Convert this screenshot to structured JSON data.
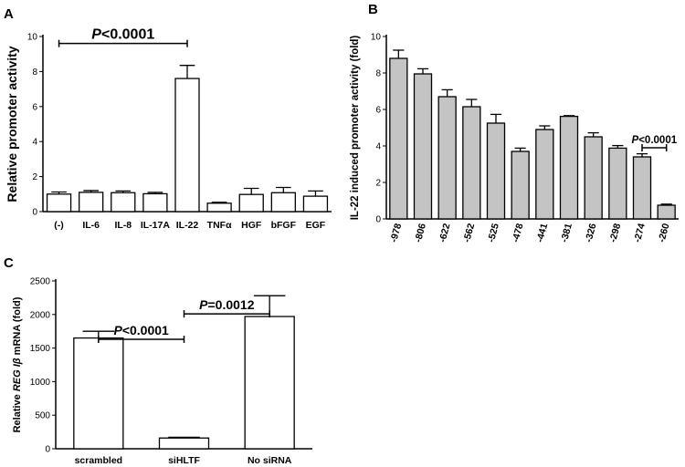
{
  "chart_data": [
    {
      "panel": "A",
      "type": "bar",
      "categories": [
        "(-)",
        "IL-6",
        "IL-8",
        "IL-17A",
        "IL-22",
        "TNFα",
        "HGF",
        "bFGF",
        "EGF"
      ],
      "values": [
        1.0,
        1.1,
        1.08,
        1.02,
        7.6,
        0.48,
        0.98,
        1.08,
        0.88
      ],
      "errors": [
        0.12,
        0.1,
        0.1,
        0.08,
        0.75,
        0.05,
        0.35,
        0.3,
        0.3
      ],
      "ylabel": "Relative promoter activity",
      "ylim": [
        0,
        10
      ],
      "yticks": [
        0,
        2,
        4,
        6,
        8,
        10
      ],
      "bar_color": "#ffffff",
      "annotations": [
        {
          "text": "P<0.0001",
          "from": "(-)",
          "to": "IL-22",
          "y": 9.6
        }
      ]
    },
    {
      "panel": "B",
      "type": "bar",
      "categories": [
        "-978",
        "-806",
        "-622",
        "-562",
        "-525",
        "-478",
        "-441",
        "-381",
        "-326",
        "-298",
        "-274",
        "-260"
      ],
      "values": [
        8.8,
        7.95,
        6.7,
        6.15,
        5.25,
        3.7,
        4.9,
        5.62,
        4.5,
        3.88,
        3.4,
        0.75
      ],
      "errors": [
        0.45,
        0.28,
        0.38,
        0.4,
        0.48,
        0.18,
        0.2,
        0.04,
        0.22,
        0.14,
        0.17,
        0.06
      ],
      "ylabel": "IL-22 induced promoter activity (fold)",
      "ylim": [
        0,
        10
      ],
      "yticks": [
        0,
        2,
        4,
        6,
        8,
        10
      ],
      "bar_color": "#c4c4c4",
      "annotations": [
        {
          "text": "P<0.0001",
          "from": "-274",
          "to": "-260",
          "y": 3.9
        }
      ]
    },
    {
      "panel": "C",
      "type": "bar",
      "categories": [
        "scrambled",
        "siHLTF",
        "No siRNA"
      ],
      "values": [
        1650,
        160,
        1970
      ],
      "errors": [
        100,
        12,
        310
      ],
      "ylabel_prefix": "Relative ",
      "ylabel_italic": "REG Iβ",
      "ylabel_suffix": " mRNA (fold)",
      "ylim": [
        0,
        2500
      ],
      "yticks": [
        0,
        500,
        1000,
        1500,
        2000,
        2500
      ],
      "bar_color": "#ffffff",
      "annotations": [
        {
          "text": "P<0.0001",
          "from": "scrambled",
          "to": "siHLTF",
          "y": 1630
        },
        {
          "text": "P=0.0012",
          "from": "siHLTF",
          "to": "No siRNA",
          "y": 2010
        }
      ]
    }
  ]
}
